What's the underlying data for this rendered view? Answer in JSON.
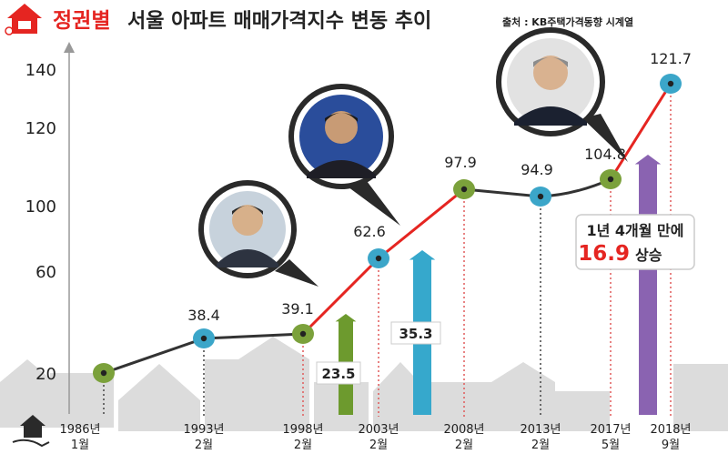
{
  "header": {
    "prefix": "정권별",
    "title": "서울 아파트 매매가격지수 변동 추이",
    "source": "출처 : KB주택가격동향 시계열"
  },
  "chart_data": {
    "type": "line",
    "title": "정권별 서울 아파트 매매가격지수 변동 추이",
    "y_ticks": [
      "20",
      "60",
      "100",
      "120",
      "140"
    ],
    "x_labels": [
      [
        "1986년",
        "1월"
      ],
      [
        "1993년",
        "2월"
      ],
      [
        "1998년",
        "2월"
      ],
      [
        "2003년",
        "2월"
      ],
      [
        "2008년",
        "2월"
      ],
      [
        "2013년",
        "2월"
      ],
      [
        "2017년",
        "5월"
      ],
      [
        "2018년",
        "9월"
      ]
    ],
    "points": [
      {
        "x": "1986년 1월",
        "label": "",
        "value": 20
      },
      {
        "x": "1993년 2월",
        "label": "38.4",
        "value": 38.4
      },
      {
        "x": "1998년 2월",
        "label": "39.1",
        "value": 39.1
      },
      {
        "x": "2003년 2월",
        "label": "62.6",
        "value": 62.6
      },
      {
        "x": "2008년 2월",
        "label": "97.9",
        "value": 97.9
      },
      {
        "x": "2013년 2월",
        "label": "94.9",
        "value": 94.9
      },
      {
        "x": "2017년 5월",
        "label": "104.8",
        "value": 104.8
      },
      {
        "x": "2018년 9월",
        "label": "121.7",
        "value": 121.7
      }
    ],
    "rises": [
      {
        "label": "23.5",
        "value": 23.5
      },
      {
        "label": "35.3",
        "value": 35.3
      },
      {
        "label": "16.9",
        "value": 16.9
      }
    ],
    "callout": {
      "line1": "1년 4개월 만에",
      "value": "16.9",
      "suffix": "상승"
    },
    "colors": {
      "red_line": "#e52521",
      "gray_line": "#333333",
      "green_dot": "#7ba13b",
      "blue_dot": "#3ba6c9",
      "green_arrow": "#6d9a2e",
      "blue_arrow": "#36a8cc",
      "purple_arrow": "#8a63b1",
      "title_red": "#e52521"
    }
  }
}
